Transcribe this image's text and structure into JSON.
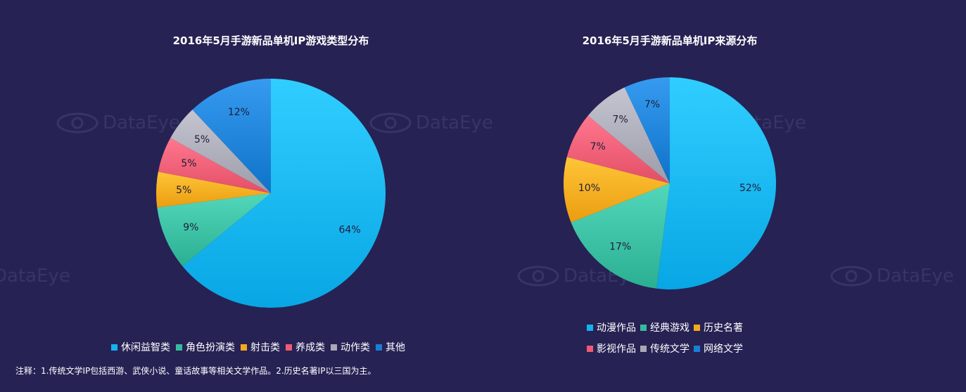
{
  "watermark_text": "DataEye",
  "note": "注释：1.传统文学IP包括西游、武侠小说、童话故事等相关文学作品。2.历史名著IP以三国为主。",
  "chart_data": [
    {
      "type": "pie",
      "title": "2016年5月手游新品单机IP游戏类型分布",
      "legend_position": "bottom",
      "slices": [
        {
          "label": "休闲益智类",
          "value": 64,
          "display": "64%",
          "color": "#14b2f0"
        },
        {
          "label": "角色扮演类",
          "value": 9,
          "display": "9%",
          "color": "#37bb9f"
        },
        {
          "label": "射击类",
          "value": 5,
          "display": "5%",
          "color": "#f7a91c"
        },
        {
          "label": "养成类",
          "value": 5,
          "display": "5%",
          "color": "#ef5b72"
        },
        {
          "label": "动作类",
          "value": 5,
          "display": "5%",
          "color": "#a9a8b5"
        },
        {
          "label": "其他",
          "value": 12,
          "display": "12%",
          "color": "#1a7fd4"
        }
      ]
    },
    {
      "type": "pie",
      "title": "2016年5月手游新品单机IP来源分布",
      "legend_position": "bottom",
      "slices": [
        {
          "label": "动漫作品",
          "value": 52,
          "display": "52%",
          "color": "#14b2f0"
        },
        {
          "label": "经典游戏",
          "value": 17,
          "display": "17%",
          "color": "#37bb9f"
        },
        {
          "label": "历史名著",
          "value": 10,
          "display": "10%",
          "color": "#f7a91c"
        },
        {
          "label": "影视作品",
          "value": 7,
          "display": "7%",
          "color": "#ef5b72"
        },
        {
          "label": "传统文学",
          "value": 7,
          "display": "7%",
          "color": "#a9a8b5"
        },
        {
          "label": "网络文学",
          "value": 7,
          "display": "7%",
          "color": "#1a7fd4"
        }
      ]
    }
  ]
}
